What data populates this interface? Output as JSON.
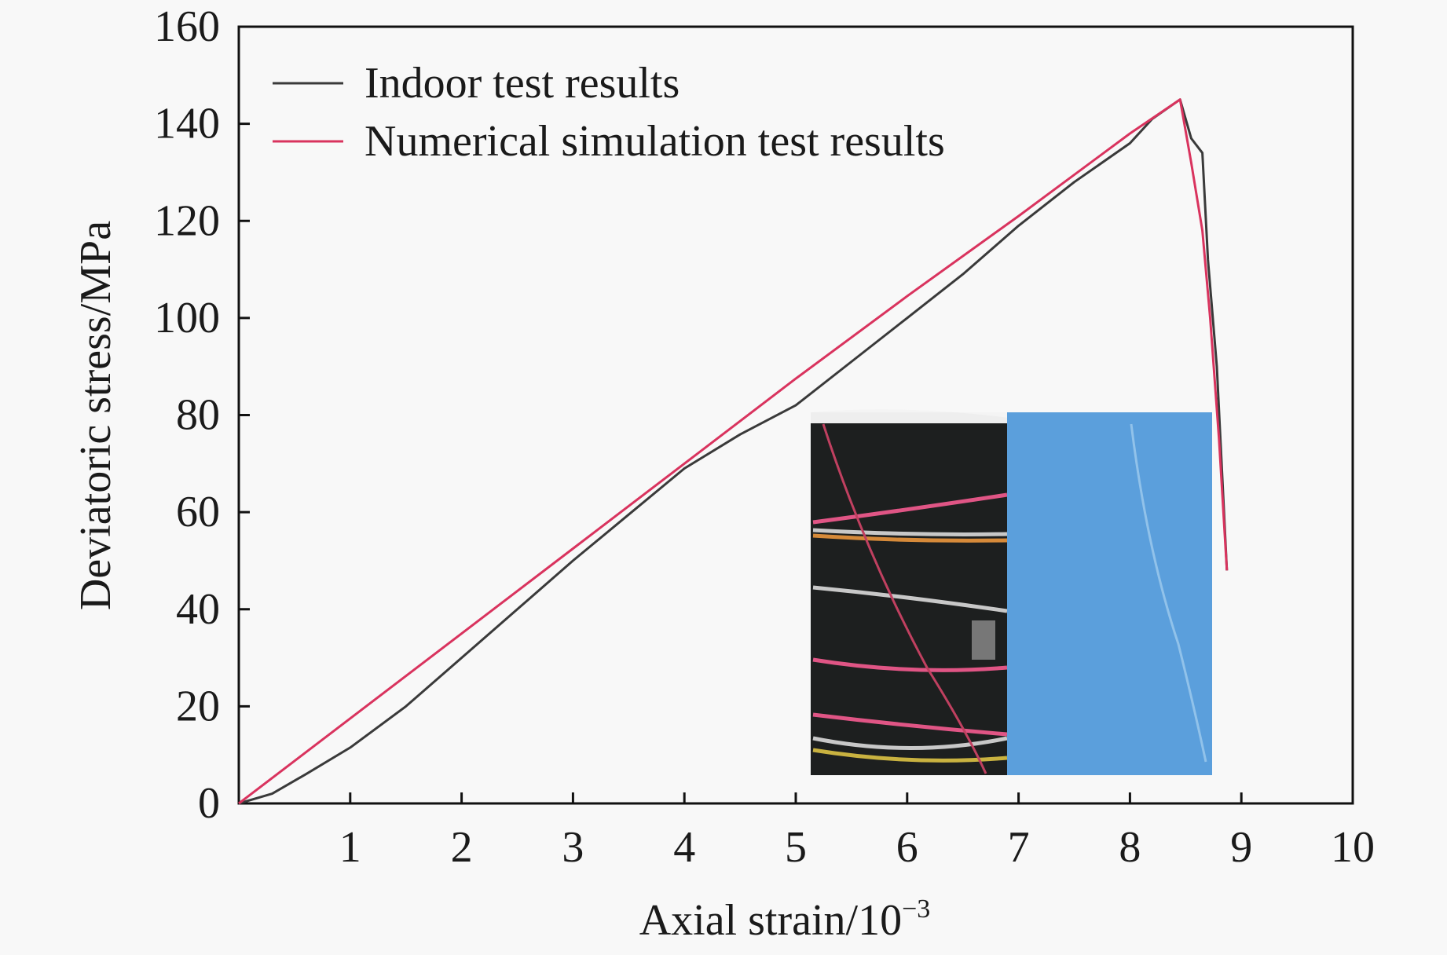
{
  "chart_data": {
    "type": "line",
    "title": "",
    "xlabel": "Axial strain/10",
    "xlabel_sup": "−3",
    "ylabel": "Deviatoric stress/MPa",
    "xlim": [
      0,
      10
    ],
    "ylim": [
      0,
      160
    ],
    "xticks": [
      1,
      2,
      3,
      4,
      5,
      6,
      7,
      8,
      9,
      10
    ],
    "yticks": [
      0,
      20,
      40,
      60,
      80,
      100,
      120,
      140,
      160
    ],
    "grid": false,
    "legend_position": "top-left",
    "series": [
      {
        "name": "Indoor test results",
        "color": "#3a3a3a",
        "x": [
          0,
          0.3,
          0.6,
          1,
          1.5,
          2,
          2.5,
          3,
          3.5,
          4,
          4.5,
          5,
          5.5,
          6,
          6.5,
          7,
          7.5,
          8,
          8.2,
          8.45,
          8.55,
          8.65,
          8.7,
          8.78,
          8.87
        ],
        "y": [
          0,
          2,
          6,
          11.5,
          20,
          30,
          40,
          50,
          59.5,
          69,
          76,
          82,
          91,
          100,
          109,
          119,
          128,
          136,
          141,
          145,
          137,
          134,
          112,
          90,
          48
        ]
      },
      {
        "name": "Numerical simulation test results",
        "color": "#d9335e",
        "x": [
          0,
          1,
          2,
          3,
          4,
          5,
          6,
          7,
          8,
          8.45,
          8.55,
          8.65,
          8.72,
          8.8,
          8.87
        ],
        "y": [
          0,
          17.5,
          35,
          52.5,
          70,
          87.5,
          104.5,
          121,
          138,
          145,
          132,
          118,
          100,
          75,
          48
        ]
      }
    ],
    "inset": "specimen-photo"
  }
}
